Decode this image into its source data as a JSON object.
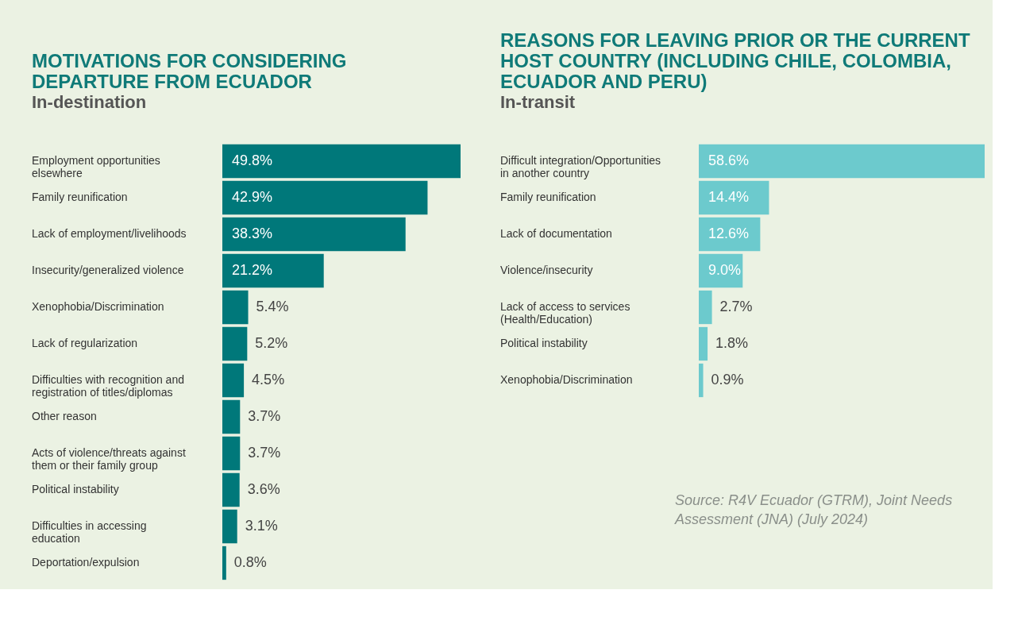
{
  "chart_data": [
    {
      "type": "bar",
      "orientation": "horizontal",
      "title": "MOTIVATIONS FOR CONSIDERING DEPARTURE FROM ECUADOR",
      "subtitle": "In-destination",
      "color": "#00787a",
      "categories": [
        "Employment opportunities elsewhere",
        "Family reunification",
        "Lack of employment/livelihoods",
        "Insecurity/generalized violence",
        "Xenophobia/Discrimination",
        "Lack of regularization",
        "Difficulties with recognition and registration of titles/diplomas",
        "Other reason",
        "Acts of violence/threats against them or their family group",
        "Political instability",
        "Difficulties in accessing education",
        "Deportation/expulsion"
      ],
      "values": [
        49.8,
        42.9,
        38.3,
        21.2,
        5.4,
        5.2,
        4.5,
        3.7,
        3.7,
        3.6,
        3.1,
        0.8
      ],
      "value_labels": [
        "49.8%",
        "42.9%",
        "38.3%",
        "21.2%",
        "5.4%",
        "5.2%",
        "4.5%",
        "3.7%",
        "3.7%",
        "3.6%",
        "3.1%",
        "0.8%"
      ]
    },
    {
      "type": "bar",
      "orientation": "horizontal",
      "title": "REASONS FOR LEAVING PRIOR OR THE CURRENT HOST COUNTRY (INCLUDING CHILE, COLOMBIA, ECUADOR AND PERU)",
      "subtitle": "In-transit",
      "color": "#6ccacd",
      "categories": [
        "Difficult integration/Opportunities in another country",
        "Family reunification",
        "Lack of documentation",
        "Violence/insecurity",
        "Lack of access to services (Health/Education)",
        "Political instability",
        "Xenophobia/Discrimination"
      ],
      "values": [
        58.6,
        14.4,
        12.6,
        9.0,
        2.7,
        1.8,
        0.9
      ],
      "value_labels": [
        "58.6%",
        "14.4%",
        "12.6%",
        "9.0%",
        "2.7%",
        "1.8%",
        "0.9%"
      ],
      "annotations": [
        "Source: R4V Ecuador (GTRM), Joint Needs Assessment (JNA) (July 2024)"
      ]
    }
  ]
}
